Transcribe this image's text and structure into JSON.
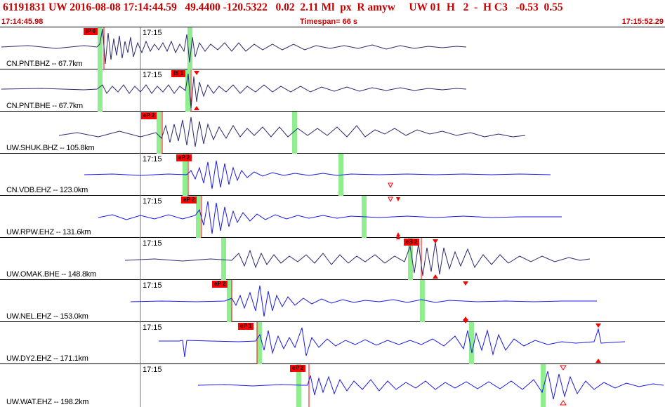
{
  "header": {
    "event_line": "61191831 UW 2016-08-08 17:14:44.59   49.4400 -120.5322   0.02  2.11 Ml  px  R amyw     UW 01  H   2  -  H C3   -0.53  0.55",
    "start_time": "17:14:45.98",
    "timespan": "Timespan=  66 s",
    "end_time": "17:15:52.29"
  },
  "colors": {
    "header_text": "#c80000",
    "trace_dark": "#2a2a6e",
    "trace_blue": "#1a1ae6",
    "pick_box": "#ff0000",
    "amp_window": "#90ee90",
    "triangle": "#ff0000"
  },
  "tick_label": "17:15",
  "panels": [
    {
      "station": "CN.PNT.BHZ -- 67.7km",
      "pick": "iP 0",
      "trace": "dark"
    },
    {
      "station": "CN.PNT.BHE -- 67.7km",
      "pick": "iS 1",
      "trace": "dark"
    },
    {
      "station": "UW.SHUK.BHZ -- 105.8km",
      "pick": "eP 2",
      "trace": "dark"
    },
    {
      "station": "CN.VDB.EHZ -- 123.0km",
      "pick": "eP 2",
      "trace": "blue"
    },
    {
      "station": "UW.RPW.EHZ -- 131.6km",
      "pick": "eP 2",
      "trace": "blue"
    },
    {
      "station": "UW.OMAK.BHE -- 148.8km",
      "pick": "eS 2",
      "trace": "dark"
    },
    {
      "station": "UW.NEL.EHZ -- 153.0km",
      "pick": "eP 2",
      "trace": "blue"
    },
    {
      "station": "UW.DY2.EHZ -- 171.1km",
      "pick": "eP 1",
      "trace": "blue"
    },
    {
      "station": "UW.WAT.EHZ -- 198.2km",
      "pick": "eP 2",
      "trace": "blue"
    }
  ]
}
